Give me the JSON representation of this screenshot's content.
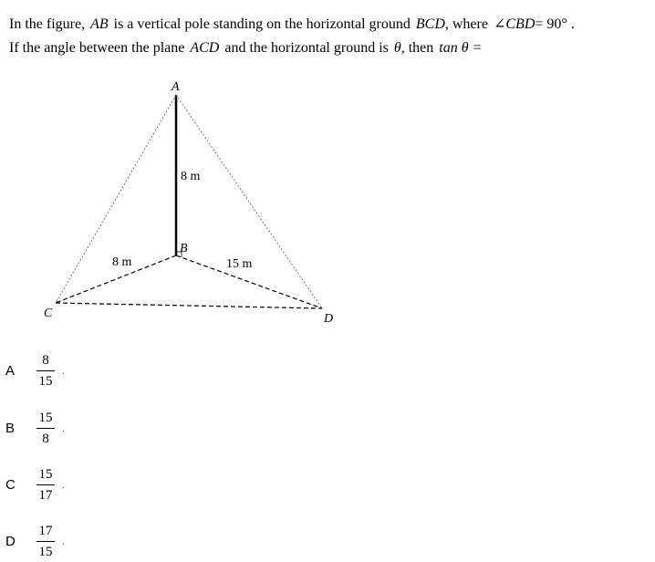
{
  "question": {
    "line1": {
      "t1": "In the figure,",
      "ab": "AB",
      "t2": "is a vertical pole standing on the horizontal ground",
      "bcd": "BCD",
      "t3": ", where",
      "angle": "∠CBD",
      "t4": "= 90° ."
    },
    "line2": {
      "t1": "If the angle between the plane",
      "acd": "ACD",
      "t2": "and the horizontal ground is",
      "theta": "θ",
      "t3": ", then",
      "tan": "tan θ ="
    }
  },
  "figure": {
    "label_a": "A",
    "label_b": "B",
    "label_c": "C",
    "label_d": "D",
    "len_ab": "8 m",
    "len_bc": "8 m",
    "len_bd": "15 m"
  },
  "options": [
    {
      "letter": "A",
      "numerator": "8",
      "denominator": "15",
      "suffix": "."
    },
    {
      "letter": "B",
      "numerator": "15",
      "denominator": "8",
      "suffix": "."
    },
    {
      "letter": "C",
      "numerator": "15",
      "denominator": "17",
      "suffix": "."
    },
    {
      "letter": "D",
      "numerator": "17",
      "denominator": "15",
      "suffix": "."
    }
  ]
}
